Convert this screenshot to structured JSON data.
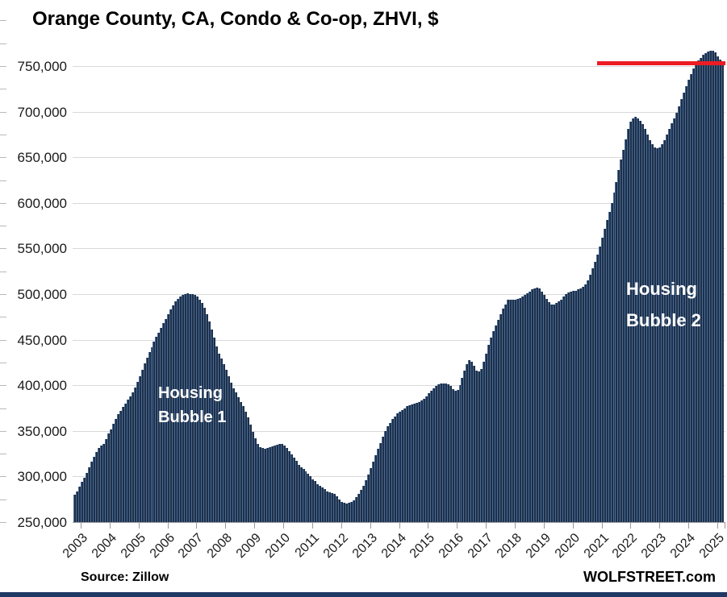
{
  "page": {
    "title": "Orange County, CA, Condo & Co-op, ZHVI, $",
    "source_note": "Source: Zillow",
    "site_credit": "WOLFSTREET.com"
  },
  "annotations": {
    "bubble1_line1": "Housing",
    "bubble1_line2": "Bubble 1",
    "bubble2_line1": "Housing",
    "bubble2_line2": "Bubble 2"
  },
  "colors": {
    "bar_fill": "#1e3048",
    "bar_stripe": "#4a6b96",
    "reference_line": "#ec1c24",
    "gridline": "#d9d9d9",
    "axis": "#9a9a9a",
    "bottom_strip": "#1f3864",
    "annotation_text": "#ffffff"
  },
  "chart_data": {
    "type": "bar",
    "title": "Orange County, CA, Condo & Co-op, ZHVI, $",
    "unit": "$",
    "frequency": "monthly",
    "x_start": "2003-01",
    "x_end": "2025-06",
    "x_tick_labels": [
      "2003",
      "2004",
      "2005",
      "2006",
      "2007",
      "2008",
      "2009",
      "2010",
      "2011",
      "2012",
      "2013",
      "2014",
      "2015",
      "2016",
      "2017",
      "2018",
      "2019",
      "2020",
      "2021",
      "2022",
      "2023",
      "2024",
      "2025"
    ],
    "ylim": [
      250000,
      800000
    ],
    "y_gridline_step": 50000,
    "y_tick_labels": [
      "250,000",
      "300,000",
      "350,000",
      "400,000",
      "450,000",
      "500,000",
      "550,000",
      "600,000",
      "650,000",
      "700,000",
      "750,000"
    ],
    "grid": true,
    "legend": false,
    "reference_line": {
      "value": 753000,
      "starts_at": "2021-02",
      "color": "#ec1c24"
    },
    "values": [
      280000,
      284000,
      289000,
      294000,
      299000,
      304000,
      310000,
      316000,
      322000,
      327000,
      331000,
      334000,
      336000,
      341000,
      347000,
      352000,
      358000,
      363000,
      368000,
      372000,
      376000,
      380000,
      384000,
      388000,
      392000,
      398000,
      404000,
      410000,
      417000,
      424000,
      430000,
      436000,
      442000,
      448000,
      453000,
      458000,
      463000,
      468000,
      473000,
      478000,
      483000,
      488000,
      492000,
      495000,
      497000,
      499000,
      500000,
      501000,
      500000,
      500000,
      499000,
      497000,
      494000,
      490000,
      485000,
      478000,
      470000,
      461000,
      452000,
      443000,
      435000,
      429000,
      423000,
      417000,
      410000,
      403000,
      397000,
      392000,
      387000,
      382000,
      377000,
      371000,
      365000,
      357000,
      349000,
      342000,
      336000,
      332000,
      331000,
      330000,
      331000,
      332000,
      333000,
      334000,
      335000,
      336000,
      336000,
      334000,
      331000,
      328000,
      324000,
      321000,
      317000,
      313000,
      310000,
      308000,
      306000,
      303000,
      300000,
      297000,
      295000,
      292000,
      290000,
      288000,
      286000,
      284000,
      283000,
      282000,
      281000,
      278000,
      275000,
      272000,
      271000,
      270000,
      271000,
      272000,
      274000,
      277000,
      281000,
      285000,
      290000,
      296000,
      302000,
      309000,
      316000,
      323000,
      330000,
      337000,
      344000,
      350000,
      355000,
      359000,
      363000,
      366000,
      369000,
      371000,
      373000,
      375000,
      377000,
      378000,
      379000,
      380000,
      381000,
      382000,
      383000,
      385000,
      388000,
      391000,
      394000,
      397000,
      399000,
      401000,
      402000,
      402000,
      402000,
      401000,
      399000,
      396000,
      394000,
      395000,
      400000,
      408000,
      416000,
      423000,
      428000,
      426000,
      421000,
      416000,
      415000,
      418000,
      426000,
      435000,
      444000,
      452000,
      459000,
      466000,
      472000,
      478000,
      484000,
      489000,
      494000,
      494000,
      494000,
      494000,
      495000,
      496000,
      497000,
      499000,
      501000,
      503000,
      505000,
      506000,
      507000,
      506000,
      503000,
      499000,
      495000,
      491000,
      489000,
      489000,
      490000,
      492000,
      494000,
      497000,
      500000,
      502000,
      503000,
      504000,
      504000,
      505000,
      506000,
      508000,
      511000,
      515000,
      521000,
      528000,
      535000,
      543000,
      552000,
      562000,
      572000,
      581000,
      590000,
      600000,
      611000,
      623000,
      636000,
      648000,
      658000,
      670000,
      681000,
      689000,
      693000,
      694000,
      693000,
      690000,
      686000,
      681000,
      675000,
      669000,
      664000,
      661000,
      660000,
      661000,
      664000,
      669000,
      675000,
      681000,
      687000,
      693000,
      699000,
      706000,
      714000,
      721000,
      728000,
      735000,
      741000,
      747000,
      752000,
      756000,
      759000,
      762000,
      764000,
      766000,
      767000,
      767000,
      765000,
      761000,
      757000,
      753000
    ]
  }
}
